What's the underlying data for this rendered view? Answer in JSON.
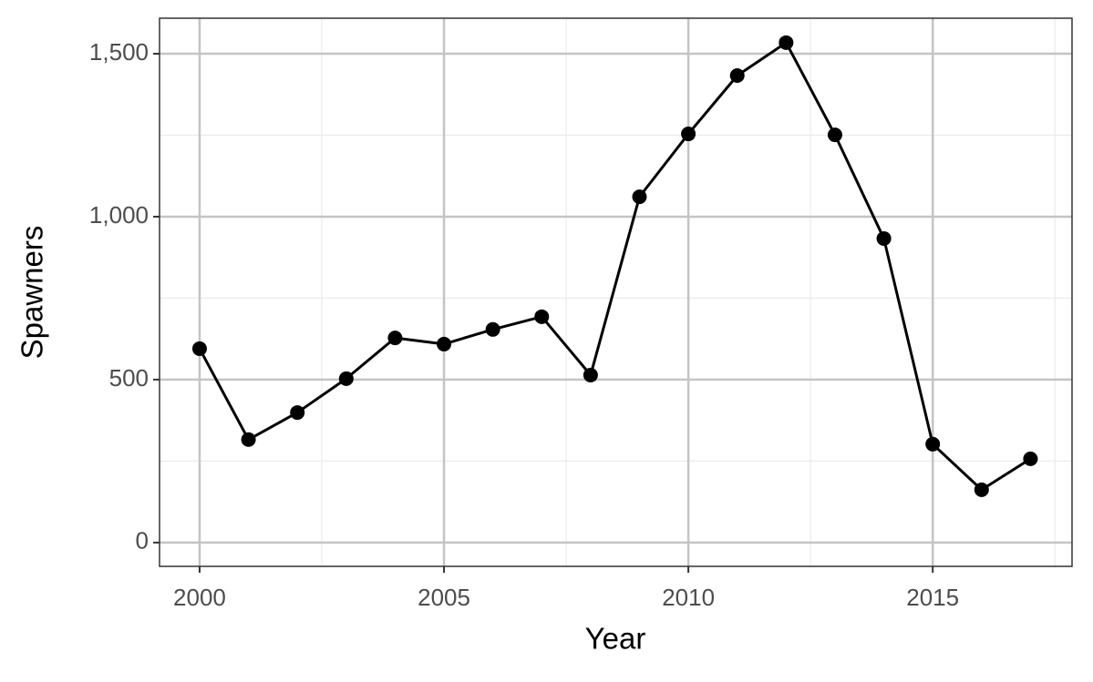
{
  "chart_data": {
    "type": "line",
    "x_label": "Year",
    "y_label": "Spawners",
    "x": [
      2000,
      2001,
      2002,
      2003,
      2004,
      2005,
      2006,
      2007,
      2008,
      2009,
      2010,
      2011,
      2012,
      2013,
      2014,
      2015,
      2016,
      2017
    ],
    "series": [
      {
        "color": "#000000",
        "values": [
          595,
          316,
          399,
          503,
          628,
          609,
          654,
          693,
          514,
          1061,
          1254,
          1433,
          1534,
          1251,
          933,
          302,
          162,
          257
        ]
      }
    ],
    "xlim": [
      1999.18,
      2017.85
    ],
    "ylim": [
      -73,
      1609
    ],
    "xticks": [
      2000,
      2005,
      2010,
      2015
    ],
    "yticks": [
      0,
      500,
      {
        "value": 1000,
        "label": "1,000"
      },
      {
        "value": 1500,
        "label": "1,500"
      }
    ],
    "xminor": [
      2002.5,
      2007.5,
      2012.5,
      2017.5
    ],
    "yminor": [
      250,
      750,
      1250
    ],
    "grid": true
  }
}
